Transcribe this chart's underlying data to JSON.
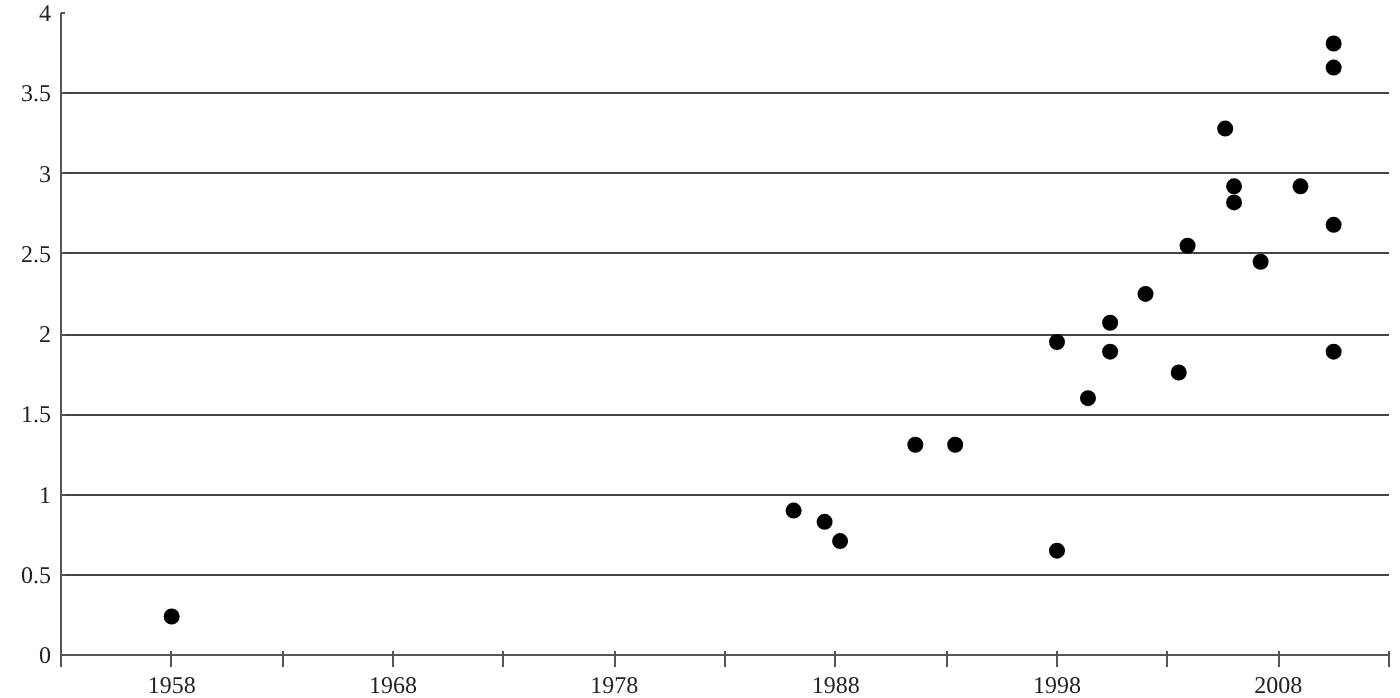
{
  "chart_data": {
    "type": "scatter",
    "marker": "circle",
    "grid": "y",
    "x": [
      1958,
      1986.1,
      1987.5,
      1988.2,
      1991.6,
      1993.4,
      1998,
      1998,
      1999.4,
      2000.4,
      2000.4,
      2002,
      2003.5,
      2003.9,
      2005.6,
      2006,
      2006,
      2007.2,
      2009,
      2010.5,
      2010.5,
      2010.5,
      2010.5
    ],
    "series": [
      {
        "color": "#000000",
        "values": [
          0.24,
          0.9,
          0.83,
          0.71,
          1.31,
          1.31,
          0.65,
          1.95,
          1.6,
          2.07,
          1.89,
          2.25,
          1.76,
          2.55,
          3.28,
          2.92,
          2.82,
          2.45,
          2.92,
          3.81,
          3.66,
          2.68,
          1.89
        ]
      }
    ],
    "xlim": [
      1953,
      2013
    ],
    "ylim": [
      0,
      4
    ],
    "xticks": [
      {
        "value": 1953,
        "label": null
      },
      {
        "value": 1958,
        "label": "1958"
      },
      {
        "value": 1963,
        "label": null
      },
      {
        "value": 1968,
        "label": "1968"
      },
      {
        "value": 1973,
        "label": null
      },
      {
        "value": 1978,
        "label": "1978"
      },
      {
        "value": 1983,
        "label": null
      },
      {
        "value": 1988,
        "label": "1988"
      },
      {
        "value": 1993,
        "label": null
      },
      {
        "value": 1998,
        "label": "1998"
      },
      {
        "value": 2003,
        "label": null
      },
      {
        "value": 2008,
        "label": "2008"
      },
      {
        "value": 2013,
        "label": null
      }
    ],
    "yticks": [
      0,
      0.5,
      1,
      1.5,
      2,
      2.5,
      3,
      3.5,
      4
    ]
  }
}
